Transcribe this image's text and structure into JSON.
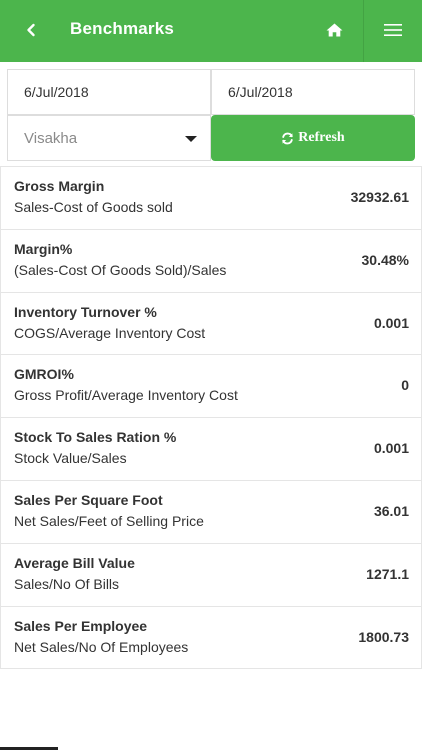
{
  "header": {
    "title": "Benchmarks",
    "back_icon": "chevron-left-icon",
    "home_icon": "home-icon",
    "menu_icon": "hamburger-menu-icon",
    "color": "#4cb54c"
  },
  "filters": {
    "date_from": "6/Jul/2018",
    "date_to": "6/Jul/2018",
    "store": "Visakha",
    "refresh_label": "Refresh",
    "refresh_icon": "refresh-icon"
  },
  "metrics": [
    {
      "title": "Gross Margin",
      "formula": "Sales-Cost of Goods sold",
      "value": "32932.61"
    },
    {
      "title": "Margin%",
      "formula": "(Sales-Cost Of Goods Sold)/Sales",
      "value": "30.48%"
    },
    {
      "title": "Inventory Turnover %",
      "formula": "COGS/Average Inventory Cost",
      "value": "0.001"
    },
    {
      "title": "GMROI%",
      "formula": "Gross Profit/Average Inventory Cost",
      "value": "0"
    },
    {
      "title": "Stock To Sales Ration %",
      "formula": "Stock Value/Sales",
      "value": "0.001"
    },
    {
      "title": "Sales Per Square Foot",
      "formula": "Net Sales/Feet of Selling Price",
      "value": "36.01"
    },
    {
      "title": "Average Bill Value",
      "formula": "Sales/No Of Bills",
      "value": "1271.1"
    },
    {
      "title": "Sales Per Employee",
      "formula": "Net Sales/No Of Employees",
      "value": "1800.73"
    }
  ]
}
